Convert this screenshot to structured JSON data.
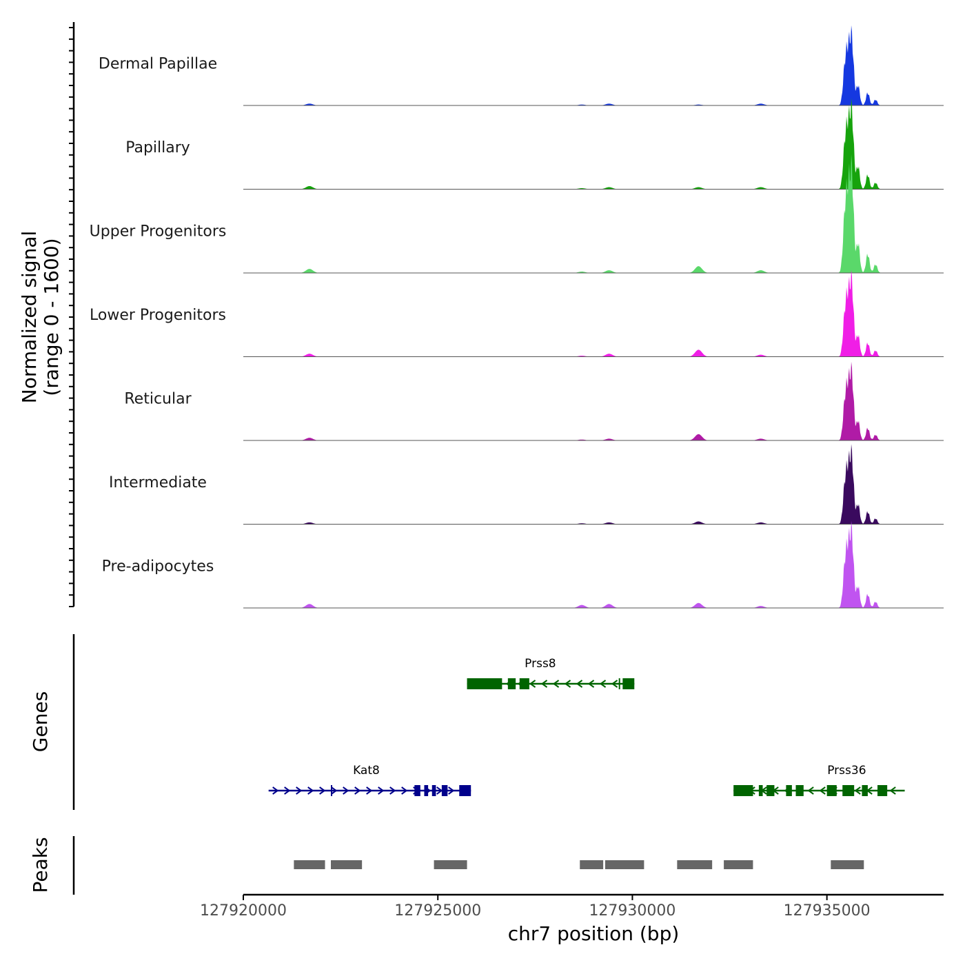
{
  "chart_data": {
    "type": "coverage-track",
    "region": {
      "chrom": "chr7",
      "start": 127920000,
      "end": 127938000
    },
    "signal_range": [
      0,
      1600
    ],
    "ylabel_line1": "Normalized signal",
    "ylabel_line2": "(range 0 - 1600)",
    "genes_label": "Genes",
    "peaks_label": "Peaks",
    "xlabel": "chr7 position (bp)",
    "x_ticks": [
      {
        "value": 127920000,
        "label": "127920000"
      },
      {
        "value": 127925000,
        "label": "127925000"
      },
      {
        "value": 127930000,
        "label": "127930000"
      },
      {
        "value": 127935000,
        "label": "127935000"
      }
    ],
    "tracks": [
      {
        "name": "Dermal Papillae",
        "color": "#1538e0",
        "peak_height": 0.58,
        "minor": [
          0.02,
          0.01,
          0.02,
          0.01,
          0.02
        ]
      },
      {
        "name": "Papillary",
        "color": "#16a30c",
        "peak_height": 0.66,
        "minor": [
          0.03,
          0.01,
          0.02,
          0.02,
          0.02
        ]
      },
      {
        "name": "Upper Progenitors",
        "color": "#5ad86a",
        "peak_height": 0.86,
        "minor": [
          0.03,
          0.01,
          0.02,
          0.05,
          0.02
        ]
      },
      {
        "name": "Lower Progenitors",
        "color": "#f01ee6",
        "peak_height": 0.63,
        "minor": [
          0.03,
          0.01,
          0.03,
          0.07,
          0.02
        ]
      },
      {
        "name": "Reticular",
        "color": "#b01ba6",
        "peak_height": 0.57,
        "minor": [
          0.03,
          0.01,
          0.02,
          0.07,
          0.02
        ]
      },
      {
        "name": "Intermediate",
        "color": "#3a0a5e",
        "peak_height": 0.58,
        "minor": [
          0.02,
          0.01,
          0.02,
          0.03,
          0.02
        ]
      },
      {
        "name": "Pre-adipocytes",
        "color": "#c054f0",
        "peak_height": 0.63,
        "minor": [
          0.04,
          0.03,
          0.04,
          0.05,
          0.02
        ]
      }
    ],
    "genes": [
      {
        "name": "Prss8",
        "strand": "-",
        "start": 127925750,
        "end": 127930050,
        "row": 0,
        "color": "#006400",
        "exons": [
          [
            127925750,
            127926650
          ],
          [
            127926800,
            127927000
          ],
          [
            127927100,
            127927350
          ],
          [
            127929650,
            127929680
          ],
          [
            127929750,
            127930050
          ]
        ]
      },
      {
        "name": "Kat8",
        "strand": "+",
        "start": 127920650,
        "end": 127925850,
        "row": 1,
        "color": "#00008b",
        "exons": [
          [
            127922250,
            127922280
          ],
          [
            127924400,
            127924550
          ],
          [
            127924650,
            127924750
          ],
          [
            127924850,
            127924950
          ],
          [
            127925100,
            127925250
          ],
          [
            127925550,
            127925850
          ]
        ]
      },
      {
        "name": "Prss36",
        "strand": "-",
        "start": 127932600,
        "end": 127937000,
        "row": 1,
        "color": "#006400",
        "exons": [
          [
            127932600,
            127933100
          ],
          [
            127933250,
            127933350
          ],
          [
            127933450,
            127933650
          ],
          [
            127933950,
            127934100
          ],
          [
            127934200,
            127934400
          ],
          [
            127935000,
            127935250
          ],
          [
            127935400,
            127935700
          ],
          [
            127935900,
            127936050
          ],
          [
            127936300,
            127936550
          ]
        ]
      }
    ],
    "peaks": [
      [
        127921300,
        127922100
      ],
      [
        127922250,
        127923050
      ],
      [
        127924900,
        127925750
      ],
      [
        127928650,
        127929250
      ],
      [
        127929300,
        127930300
      ],
      [
        127931150,
        127932050
      ],
      [
        127932350,
        127933100
      ],
      [
        127935100,
        127935950
      ]
    ]
  }
}
